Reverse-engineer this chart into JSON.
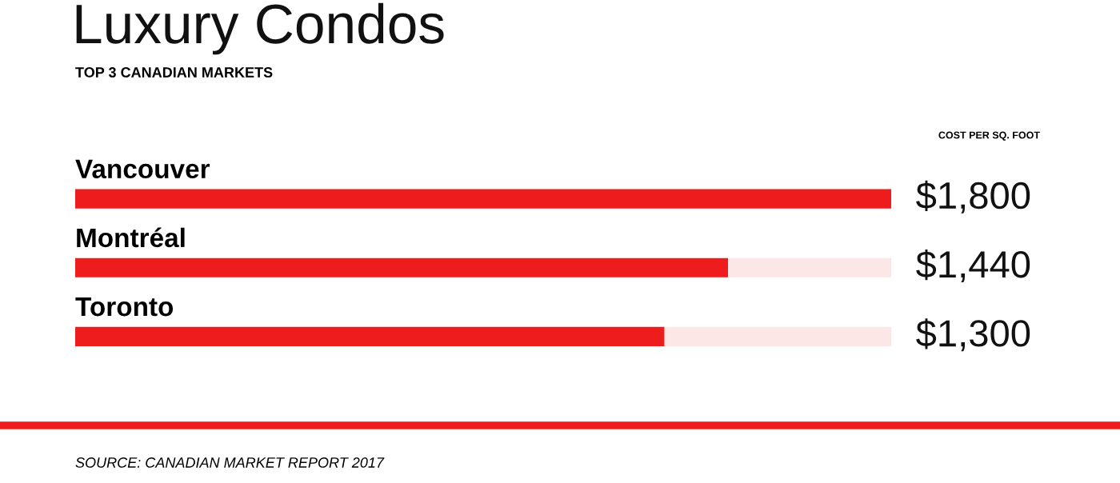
{
  "chart_data": {
    "type": "bar",
    "orientation": "horizontal",
    "title": "Luxury Condos",
    "subtitle": "TOP 3 CANADIAN MARKETS",
    "categories": [
      "Vancouver",
      "Montréal",
      "Toronto"
    ],
    "series": [
      {
        "color": "#ee1c1c",
        "values": [
          1800,
          1440,
          1300
        ],
        "value_labels": [
          "$1,800",
          "$1,440",
          "$1,300"
        ]
      },
      {
        "color": "#fce6e6",
        "values": [
          0,
          360,
          500
        ]
      }
    ],
    "stacked": true,
    "xlim": [
      0,
      1800
    ],
    "tick_labels": false,
    "legend": false,
    "annotations": [
      "COST PER SQ. FOOT",
      "SOURCE: CANADIAN MARKET REPORT 2017"
    ]
  }
}
